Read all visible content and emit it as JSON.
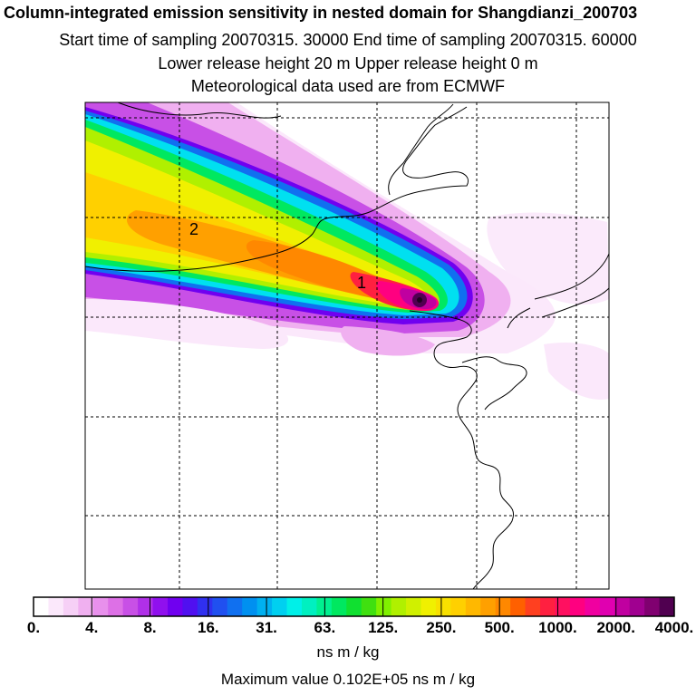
{
  "header": {
    "title": "Column-integrated emission sensitivity in nested domain for Shangdianzi_200703",
    "sampling": "Start time of sampling 20070315. 30000     End time of sampling 20070315. 60000",
    "release": "Lower release height   20 m          Upper release height    0 m",
    "met": "Meteorological data used are from ECMWF"
  },
  "map": {
    "labels": [
      {
        "id": "label-1",
        "text": "1"
      },
      {
        "id": "label-2",
        "text": "2"
      }
    ]
  },
  "colorbar": {
    "tick_labels": [
      "0.",
      "4.",
      "8.",
      "16.",
      "31.",
      "63.",
      "125.",
      "250.",
      "500.",
      "1000.",
      "2000.",
      "4000."
    ],
    "colors": [
      "#ffffff",
      "#fbe8fb",
      "#f6d0f6",
      "#f0b0f0",
      "#e890ec",
      "#dd70e6",
      "#c850e6",
      "#b030e8",
      "#9010ee",
      "#7000f0",
      "#5010f0",
      "#3030f0",
      "#2050f0",
      "#1070f0",
      "#0090f0",
      "#00b0f0",
      "#00d0f0",
      "#00f0e8",
      "#00f0c0",
      "#00f090",
      "#00e860",
      "#10e030",
      "#40e010",
      "#80f000",
      "#b0f000",
      "#d0f000",
      "#f0f000",
      "#f8e000",
      "#ffd000",
      "#ffb800",
      "#ffa000",
      "#ff8800",
      "#ff6000",
      "#ff4020",
      "#ff2040",
      "#ff1060",
      "#ff0080",
      "#f000a0",
      "#e000b0",
      "#c000a0",
      "#a00090",
      "#800070",
      "#500050"
    ],
    "units": "ns m / kg"
  },
  "footer": {
    "max_value": "Maximum value  0.102E+05 ns m / kg"
  }
}
